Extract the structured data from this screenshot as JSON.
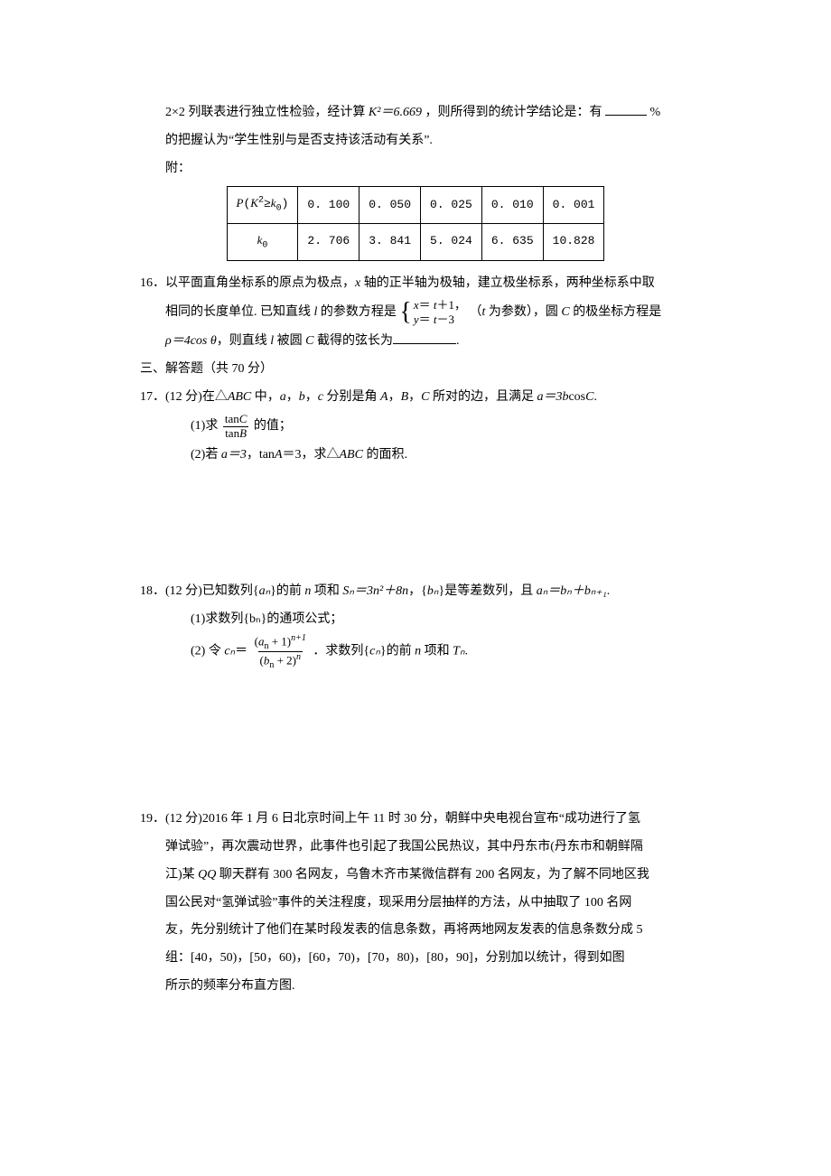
{
  "q15": {
    "line1_a": "2×2 列联表进行独立性检验，经计算 ",
    "k2_expr": "K²＝6.669",
    "line1_b": "，则所得到的统计学结论是：有",
    "line1_c": "%",
    "line2": "的把握认为“学生性别与是否支持该活动有关系”.",
    "attach": "附：",
    "table": {
      "header": [
        "P(K²≥k₀)",
        "0. 100",
        "0. 050",
        "0. 025",
        "0. 010",
        "0. 001"
      ],
      "row": [
        "k₀",
        "2. 706",
        "3. 841",
        "5. 024",
        "6. 635",
        "10.828"
      ]
    }
  },
  "q16": {
    "num": "16．",
    "line1_a": "以平面直角坐标系的原点为极点，",
    "x_axis": "x",
    "line1_b": " 轴的正半轴为极轴，建立极坐标系，两种坐标系中取",
    "line2_a": "相同的长度单位. 已知直线 ",
    "l": "l",
    "line2_b": " 的参数方程是 ",
    "cases_top": "x＝ t＋1，",
    "cases_bot": "y＝ t－3",
    "line2_c": " （",
    "t": "t",
    "line2_d": " 为参数），圆 ",
    "C": "C",
    "line2_e": " 的极坐标方程是",
    "line3_a": "ρ＝4cos θ",
    "line3_b": "，则直线 ",
    "line3_c": " 被圆 ",
    "line3_d": " 截得的弦长为",
    "period": "."
  },
  "sec3": "三、解答题（共 70 分）",
  "q17": {
    "num": "17．",
    "pts": "(12 分)",
    "stem_a": "在△",
    "ABC": "ABC",
    "stem_b": " 中，",
    "a": "a",
    "b": "b",
    "c": "c",
    "stem_c": "，",
    "stem_d": " 分别是角 ",
    "A": "A",
    "B": "B",
    "Cc": "C",
    "stem_e": "，",
    "stem_f": " 所对的边，且满足 ",
    "eq": "a＝3b",
    "cos": "cos",
    "stem_g": ".",
    "p1_a": "(1)求",
    "tanC": "tanC",
    "tanB": "tanB",
    "p1_b": "的值；",
    "p2_a": "(2)若 ",
    "p2_eq1": "a＝3",
    "p2_comma": "，",
    "p2_eq2": "tanA＝3",
    "p2_b": "，求△",
    "p2_c": " 的面积."
  },
  "q18": {
    "num": "18．",
    "pts": "(12 分)",
    "stem_a": "已知数列{",
    "an": "aₙ",
    "stem_b": "}的前 ",
    "n": "n",
    "stem_c": " 项和 ",
    "Sn": "Sₙ＝3n²＋8n",
    "stem_d": "，{",
    "bn": "bₙ",
    "stem_e": "}是等差数列，且 ",
    "rel": "aₙ＝bₙ＋bₙ₊₁",
    "stem_f": ".",
    "p1": "(1)求数列{bₙ}的通项公式；",
    "p2_a": "(2) 令 ",
    "cn": "cₙ",
    "equals": "＝",
    "num_expr_b": "(aₙ + 1)",
    "num_exp_b": "n+1",
    "den_expr_b": "(bₙ + 2)",
    "den_exp_b": "n",
    "p2_b": " ．求数列{",
    "p2_c": "}的前 ",
    "p2_d": " 项和 ",
    "Tn": "Tₙ",
    "p2_e": "."
  },
  "q19": {
    "num": "19．",
    "pts": "(12 分)",
    "l1": "2016 年 1 月 6 日北京时间上午 11 时 30 分，朝鲜中央电视台宣布“成功进行了氢",
    "l2": "弹试验”，再次震动世界，此事件也引起了我国公民热议，其中丹东市(丹东市和朝鲜隔",
    "l3_a": "江)某 ",
    "qq": "QQ",
    "l3_b": " 聊天群有 300 名网友，乌鲁木齐市某微信群有 200 名网友，为了解不同地区我",
    "l4": "国公民对“氢弹试验”事件的关注程度，现采用分层抽样的方法，从中抽取了 100 名网",
    "l5": "友，先分别统计了他们在某时段发表的信息条数，再将两地网友发表的信息条数分成 5",
    "l6": "组：[40，50)，[50，60)，[60，70)，[70，80)，[80，90]，分别加以统计，得到如图",
    "l7": "所示的频率分布直方图."
  }
}
